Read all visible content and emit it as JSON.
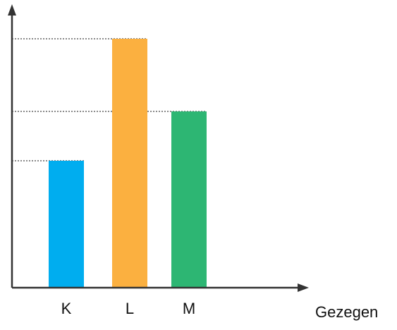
{
  "chart_data": {
    "type": "bar",
    "x_label": "Gezegen",
    "categories": [
      "K",
      "L",
      "M"
    ],
    "values": [
      180,
      353,
      250
    ],
    "colors": [
      "#00adef",
      "#fbb040",
      "#2db673"
    ],
    "ylim": [
      0,
      398
    ],
    "reference_lines": true
  }
}
